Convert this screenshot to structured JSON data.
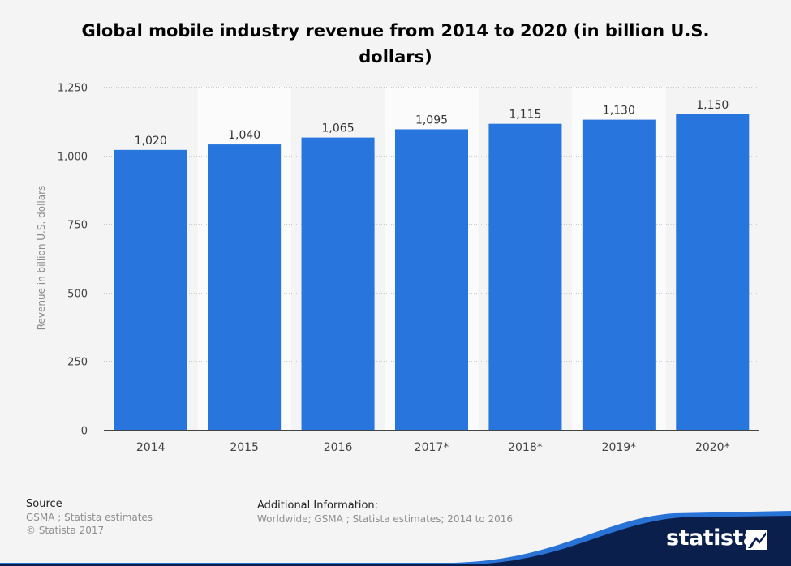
{
  "page": {
    "title": "Global mobile industry revenue from 2014 to 2020 (in billion U.S. dollars)"
  },
  "chart_data": {
    "type": "bar",
    "title": "Global mobile industry revenue from 2014 to 2020 (in billion U.S. dollars)",
    "xlabel": "",
    "ylabel": "Revenue in billion U.S. dollars",
    "categories": [
      "2014",
      "2015",
      "2016",
      "2017*",
      "2018*",
      "2019*",
      "2020*"
    ],
    "values": [
      1020,
      1040,
      1065,
      1095,
      1115,
      1130,
      1150
    ],
    "value_labels": [
      "1,020",
      "1,040",
      "1,065",
      "1,095",
      "1,115",
      "1,130",
      "1,150"
    ],
    "ylim": [
      0,
      1250
    ],
    "yticks": [
      0,
      250,
      500,
      750,
      1000,
      1250
    ],
    "ytick_labels": [
      "0",
      "250",
      "500",
      "750",
      "1,000",
      "1,250"
    ],
    "grid": true,
    "legend": "none",
    "bar_color": "#2876dd"
  },
  "footer": {
    "source_heading": "Source",
    "source_lines": [
      "GSMA ; Statista estimates",
      "© Statista 2017"
    ],
    "additional_heading": "Additional Information:",
    "additional_text": "Worldwide; GSMA ; Statista estimates; 2014 to 2016"
  },
  "brand": {
    "logo_text": "statista",
    "logo_icon": "statista-logo-icon",
    "wave_color": "#0b1f4d"
  }
}
